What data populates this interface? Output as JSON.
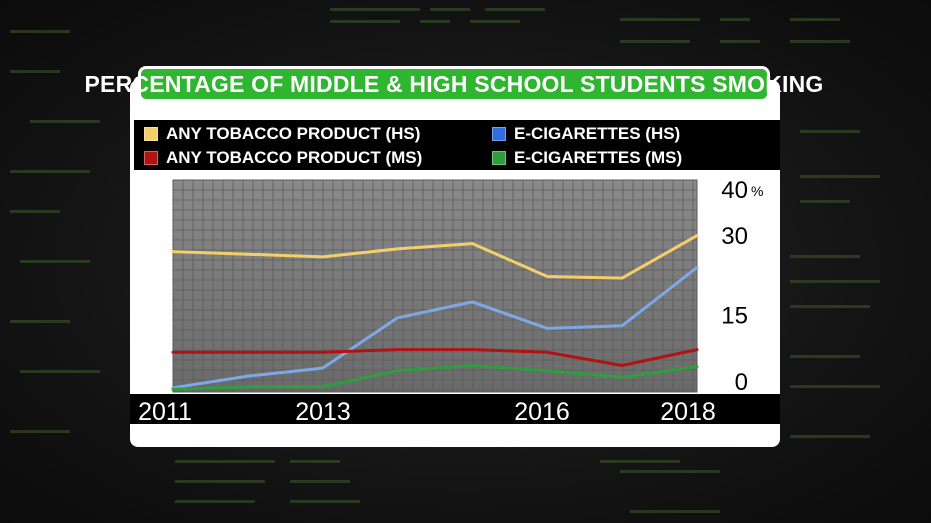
{
  "title": "PERCENTAGE OF MIDDLE & HIGH SCHOOL STUDENTS SMOKING",
  "legend": [
    {
      "label": "ANY TOBACCO PRODUCT (HS)",
      "color": "#f3cf6a"
    },
    {
      "label": "E-CIGARETTES (HS)",
      "color": "#2f6fe0"
    },
    {
      "label": "ANY TOBACCO PRODUCT (MS)",
      "color": "#b31212"
    },
    {
      "label": "E-CIGARETTES (MS)",
      "color": "#2e9e3f"
    }
  ],
  "chart_data": {
    "type": "line",
    "x": [
      2011,
      2012,
      2013,
      2014,
      2015,
      2016,
      2017,
      2018
    ],
    "xlim": [
      2011,
      2018
    ],
    "ylim": [
      0,
      40
    ],
    "x_tick_labels": [
      "2011",
      "2013",
      "2016",
      "2018"
    ],
    "y_ticks": [
      {
        "value": 40,
        "label": "40",
        "unit": "%"
      },
      {
        "value": 30,
        "label": "30"
      },
      {
        "value": 15,
        "label": "15"
      },
      {
        "value": 0,
        "label": "0"
      }
    ],
    "grid": true,
    "legend_position": "top",
    "series": [
      {
        "name": "ANY TOBACCO PRODUCT (HS)",
        "color": "#f3cf6a",
        "values": [
          26.5,
          26.0,
          25.5,
          27.0,
          28.0,
          21.8,
          21.5,
          29.5
        ]
      },
      {
        "name": "E-CIGARETTES (HS)",
        "color": "#7ea7e8",
        "values": [
          0.8,
          3.0,
          4.5,
          14.0,
          17.0,
          12.0,
          12.5,
          23.5
        ]
      },
      {
        "name": "ANY TOBACCO PRODUCT (MS)",
        "color": "#b31212",
        "values": [
          7.5,
          7.5,
          7.5,
          8.0,
          8.0,
          7.5,
          5.0,
          8.0
        ]
      },
      {
        "name": "E-CIGARETTES (MS)",
        "color": "#2e9e3f",
        "values": [
          0.5,
          1.0,
          1.0,
          4.0,
          5.0,
          4.0,
          2.8,
          4.8
        ]
      }
    ]
  }
}
